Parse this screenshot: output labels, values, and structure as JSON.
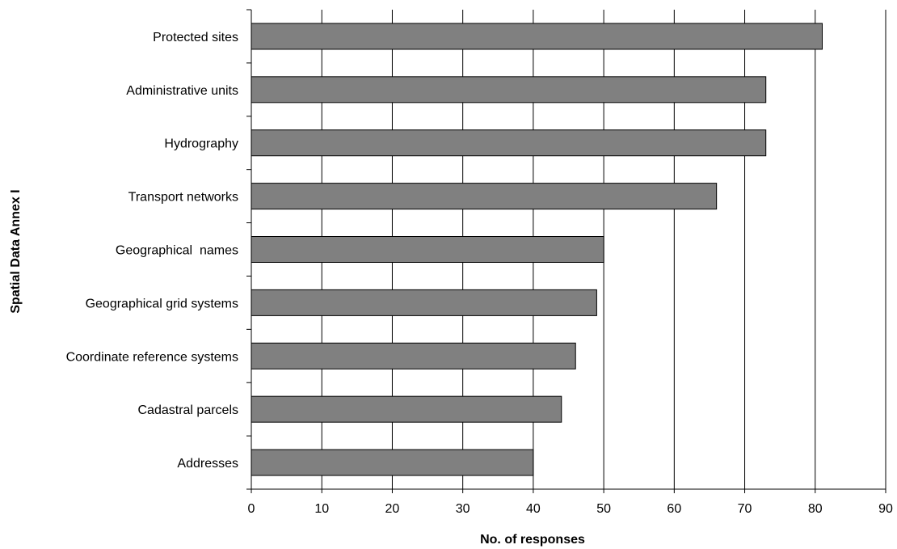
{
  "chart_data": {
    "type": "bar",
    "orientation": "horizontal",
    "title": "",
    "xlabel": "No. of responses",
    "ylabel": "Spatial Data Annex I",
    "categories": [
      "Protected sites",
      "Administrative units",
      "Hydrography",
      "Transport networks",
      "Geographical  names",
      "Geographical grid systems",
      "Coordinate reference systems",
      "Cadastral parcels",
      "Addresses"
    ],
    "values": [
      81,
      73,
      73,
      66,
      50,
      49,
      46,
      44,
      40
    ],
    "xlim": [
      0,
      90
    ],
    "xticks": [
      0,
      10,
      20,
      30,
      40,
      50,
      60,
      70,
      80,
      90
    ],
    "grid": "vertical",
    "legend": "none",
    "colors": {
      "bar_fill": "#808080",
      "bar_stroke": "#000000",
      "grid": "#000000",
      "axis": "#000000"
    }
  }
}
